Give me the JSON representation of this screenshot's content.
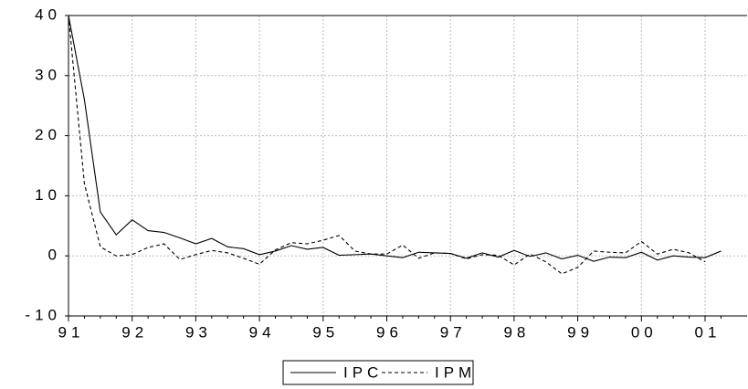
{
  "chart_data": {
    "type": "line",
    "categories": [
      "91",
      null,
      null,
      null,
      "92",
      null,
      null,
      null,
      "93",
      null,
      null,
      null,
      "94",
      null,
      null,
      null,
      "95",
      null,
      null,
      null,
      "96",
      null,
      null,
      null,
      "97",
      null,
      null,
      null,
      "98",
      null,
      null,
      null,
      "99",
      null,
      null,
      null,
      "00",
      null,
      null,
      null,
      "01",
      null
    ],
    "series": [
      {
        "name": "IPC",
        "color": "#000000",
        "dash": "solid",
        "values": [
          40,
          26,
          7.3,
          3.5,
          6,
          4.2,
          3.9,
          3,
          2,
          2.9,
          1.5,
          1.2,
          0.2,
          0.8,
          1.7,
          1.1,
          1.4,
          0.1,
          0.2,
          0.3,
          0,
          -0.3,
          0.6,
          0.5,
          0.4,
          -0.4,
          0.5,
          -0.2,
          0.9,
          -0.1,
          0.5,
          -0.5,
          0.1,
          -0.9,
          -0.2,
          -0.3,
          0.6,
          -0.7,
          0,
          -0.2,
          -0.3,
          0.8
        ]
      },
      {
        "name": "IPM",
        "color": "#000000",
        "dash": "dashed",
        "values": [
          40,
          12,
          1.5,
          0,
          0.2,
          1.4,
          2,
          -0.6,
          0.2,
          0.9,
          0.5,
          -0.4,
          -1.4,
          1.0,
          2.2,
          2.0,
          2.6,
          3.4,
          0.8,
          0.3,
          0.3,
          1.8,
          -0.4,
          0.5,
          0.4,
          -0.5,
          0.2,
          0.1,
          -1.5,
          0.3,
          -1.0,
          -3.0,
          -1.9,
          0.8,
          0.6,
          0.5,
          2.4,
          0.3,
          1.1,
          0.5,
          -1.0,
          null
        ]
      }
    ],
    "ylim": [
      -10,
      40
    ],
    "yticks": [
      -10,
      0,
      10,
      20,
      30,
      40
    ],
    "grid": true,
    "legend": "bottom"
  }
}
